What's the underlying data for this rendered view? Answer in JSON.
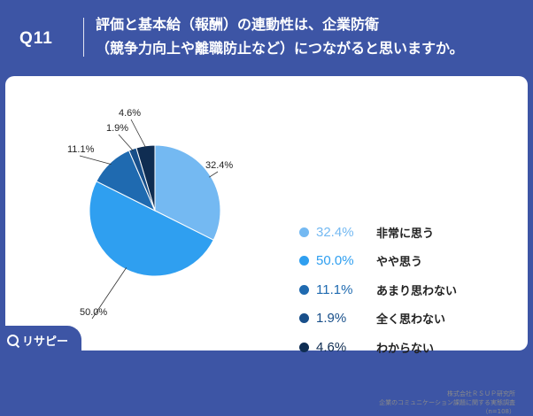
{
  "header": {
    "question_id": "Q11",
    "title_lines": [
      "評価と基本給（報酬）の連動性は、企業防衛",
      "（競争力向上や離職防止など）につながると思いますか。"
    ]
  },
  "colors": {
    "background": "#3d55a5",
    "card": "#ffffff",
    "series": [
      "#74b9f2",
      "#2f9ff0",
      "#1f6ab0",
      "#184f8a",
      "#0f2d52"
    ]
  },
  "chart_data": {
    "type": "pie",
    "start_angle_deg": 0,
    "direction": "clockwise",
    "slices": [
      {
        "label": "非常に思う",
        "value": 32.4,
        "display": "32.4%"
      },
      {
        "label": "やや思う",
        "value": 50.0,
        "display": "50.0%"
      },
      {
        "label": "あまり思わない",
        "value": 11.1,
        "display": "11.1%"
      },
      {
        "label": "全く思わない",
        "value": 1.9,
        "display": "1.9%"
      },
      {
        "label": "わからない",
        "value": 4.6,
        "display": "4.6%"
      }
    ],
    "legend_position": "right"
  },
  "footer": {
    "lines": [
      "株式会社ＲＳＵＰ研究所",
      "企業のコミュニケーション課題に関する実態調査",
      "（n=108）"
    ]
  },
  "logo": {
    "text": "リサピー"
  }
}
